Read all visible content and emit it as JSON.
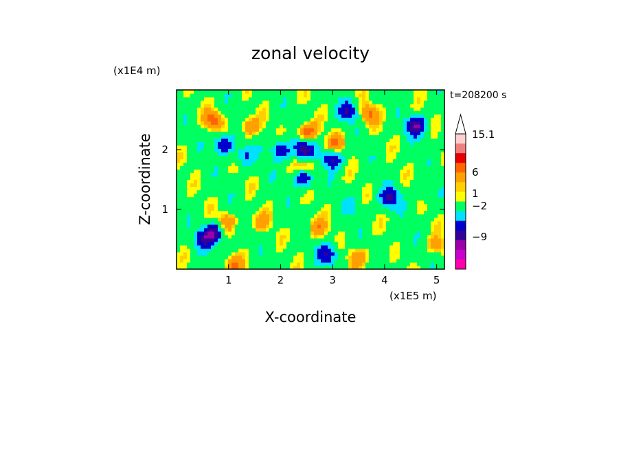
{
  "chart_data": {
    "type": "heatmap",
    "title": "zonal velocity",
    "xlabel": "X-coordinate",
    "ylabel": "Z-coordinate",
    "x_unit": "(x1E5 m)",
    "y_unit": "(x1E4 m)",
    "time_label": "t=208200 s",
    "xlim": [
      0,
      5.15
    ],
    "ylim": [
      0,
      3.0
    ],
    "x_ticks": [
      1,
      2,
      3,
      4,
      5
    ],
    "y_ticks": [
      1,
      2
    ],
    "colorbar": {
      "labels": [
        "15.1",
        "6",
        "1",
        "−2",
        "−9"
      ],
      "colors": [
        "#ffd0d0",
        "#f08080",
        "#e80000",
        "#ff6600",
        "#ffa000",
        "#ffd000",
        "#ffff00",
        "#00ff60",
        "#00e0ff",
        "#0000cc",
        "#330099",
        "#9900aa",
        "#cc00cc",
        "#ff00aa"
      ]
    },
    "features": [
      {
        "x": 0.7,
        "z": 2.5,
        "v": 7
      },
      {
        "x": 1.4,
        "z": 2.4,
        "v": 6
      },
      {
        "x": 0.9,
        "z": 2.1,
        "v": -9
      },
      {
        "x": 1.3,
        "z": 1.9,
        "v": -6
      },
      {
        "x": 2.0,
        "z": 2.0,
        "v": -9
      },
      {
        "x": 2.45,
        "z": 2.0,
        "v": -12
      },
      {
        "x": 2.5,
        "z": 2.3,
        "v": 8
      },
      {
        "x": 2.5,
        "z": 1.7,
        "v": 7
      },
      {
        "x": 2.45,
        "z": 1.55,
        "v": -11
      },
      {
        "x": 3.05,
        "z": 2.1,
        "v": 6
      },
      {
        "x": 3.0,
        "z": 1.85,
        "v": -10
      },
      {
        "x": 3.3,
        "z": 2.65,
        "v": -9
      },
      {
        "x": 3.7,
        "z": 2.6,
        "v": 6
      },
      {
        "x": 4.6,
        "z": 2.4,
        "v": -12
      },
      {
        "x": 4.1,
        "z": 1.2,
        "v": -10
      },
      {
        "x": 3.4,
        "z": 1.05,
        "v": -3
      },
      {
        "x": 4.8,
        "z": 1.3,
        "v": -3
      },
      {
        "x": 0.95,
        "z": 0.8,
        "v": 5
      },
      {
        "x": 0.72,
        "z": 0.6,
        "v": -12
      },
      {
        "x": 0.5,
        "z": 0.5,
        "v": -7
      },
      {
        "x": 2.7,
        "z": 0.7,
        "v": 5
      },
      {
        "x": 1.6,
        "z": 0.8,
        "v": 4
      },
      {
        "x": 2.9,
        "z": 0.25,
        "v": -9
      },
      {
        "x": 3.5,
        "z": 0.2,
        "v": 5
      },
      {
        "x": 1.1,
        "z": 0.05,
        "v": 6
      },
      {
        "x": 5.0,
        "z": 0.4,
        "v": 4
      },
      {
        "x": 4.3,
        "z": 0.4,
        "v": -1
      }
    ]
  }
}
